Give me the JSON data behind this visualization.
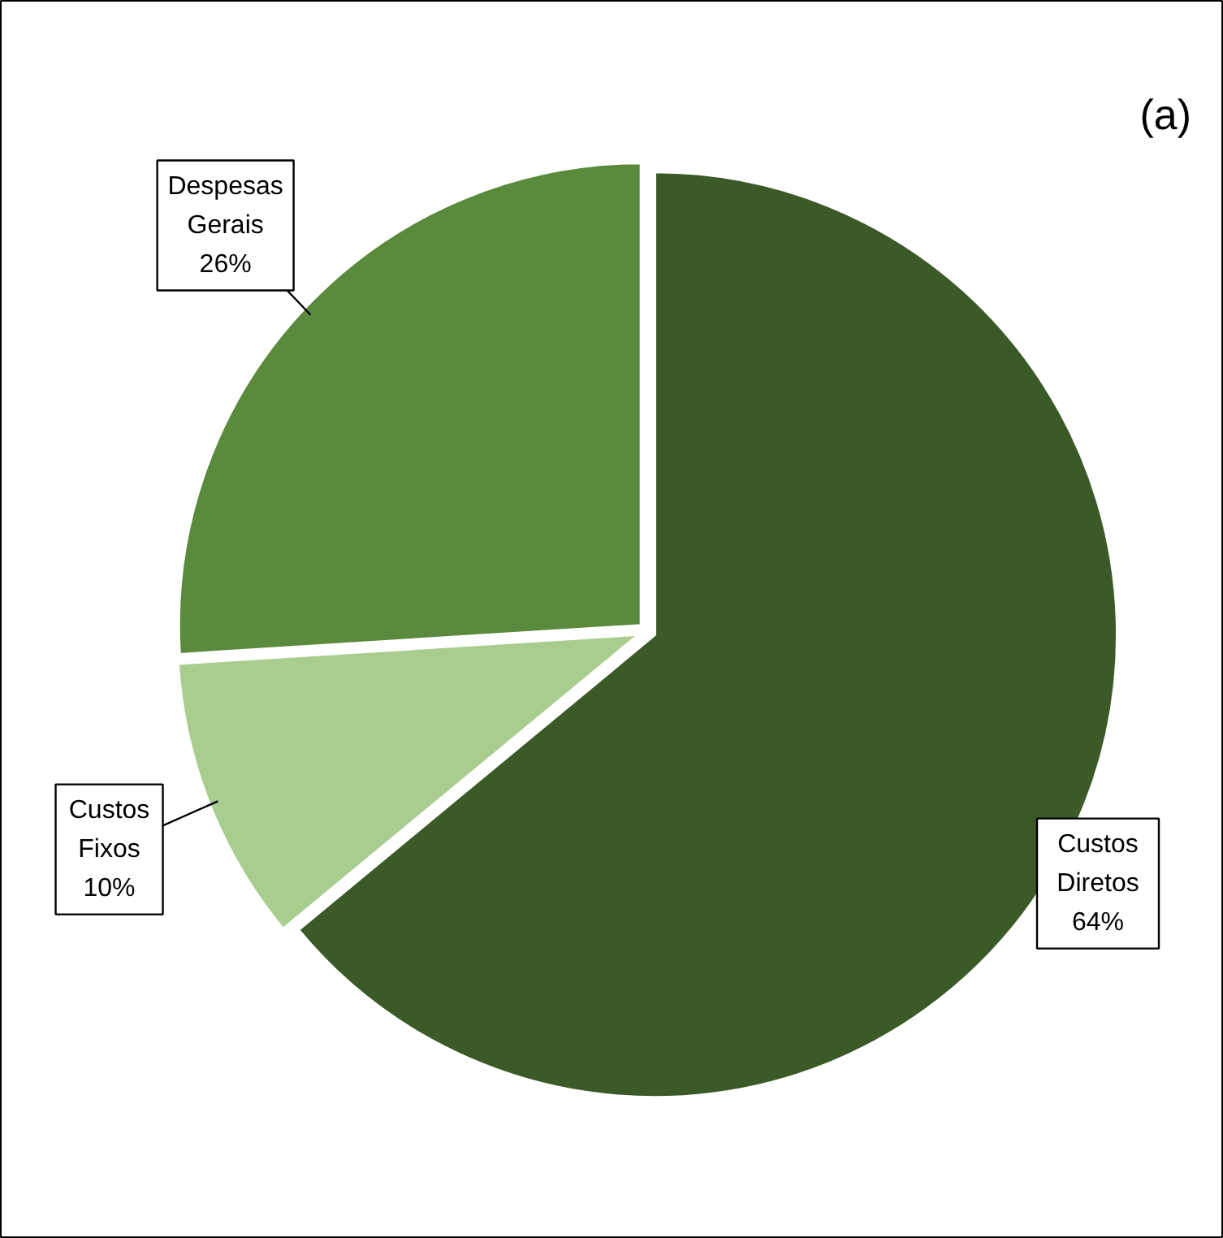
{
  "chart_data": {
    "type": "pie",
    "categories": [
      "Custos Diretos",
      "Custos Fixos",
      "Despesas Gerais"
    ],
    "values": [
      64,
      10,
      26
    ],
    "colors": [
      "#3c5a28",
      "#a9cd8e",
      "#5a8a3c"
    ],
    "value_labels": [
      "64%",
      "10%",
      "26%"
    ],
    "annotations": [
      "(a)"
    ]
  }
}
